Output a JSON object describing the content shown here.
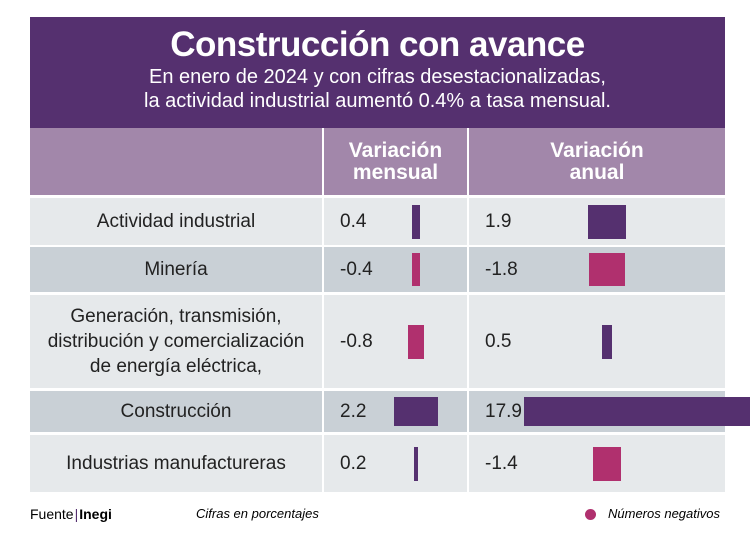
{
  "title": "Construcción con avance",
  "subtitle": [
    "En enero de 2024 y con cifras desestacionalizadas,",
    "la actividad industrial aumentó 0.4% a tasa mensual."
  ],
  "chart_data": {
    "type": "table",
    "columns": [
      "Variación mensual",
      "Variación anual"
    ],
    "categories": [
      "Actividad industrial",
      "Minería",
      "Generación, transmisión, distribución y comercialización de energía eléctrica,",
      "Construcción",
      "Industrias manufactureras"
    ],
    "series": [
      {
        "name": "Variación mensual",
        "values": [
          0.4,
          -0.4,
          -0.8,
          2.2,
          0.2
        ]
      },
      {
        "name": "Variación anual",
        "values": [
          1.9,
          -1.8,
          0.5,
          17.9,
          -1.4
        ]
      }
    ],
    "colors": {
      "positive": "#55306f",
      "negative": "#b0306e"
    }
  },
  "header": {
    "col1": [
      "Variación",
      "mensual"
    ],
    "col2": [
      "Variación",
      "anual"
    ]
  },
  "rows": [
    {
      "label": [
        "Actividad industrial"
      ],
      "m": "0.4",
      "a": "1.9"
    },
    {
      "label": [
        "Minería"
      ],
      "m": "-0.4",
      "a": "-1.8"
    },
    {
      "label": [
        "Generación, transmisión,",
        "distribución y comercialización",
        "de energía eléctrica,"
      ],
      "m": "-0.8",
      "a": "0.5"
    },
    {
      "label": [
        "Construcción"
      ],
      "m": "2.2",
      "a": "17.9"
    },
    {
      "label": [
        "Industrias manufactureras"
      ],
      "m": "0.2",
      "a": "-1.4"
    }
  ],
  "footer": {
    "source_label": "Fuente",
    "source": "Inegi",
    "note": "Cifras en porcentajes",
    "legend": "Números negativos"
  }
}
